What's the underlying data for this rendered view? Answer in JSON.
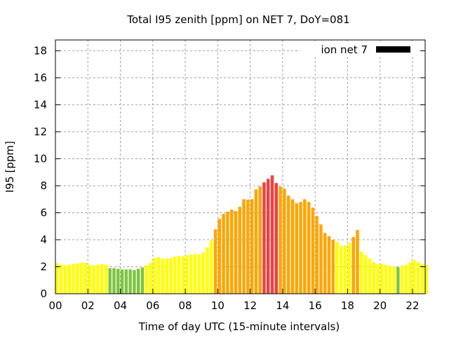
{
  "chart_data": {
    "type": "bar",
    "title": "Total I95 zenith [ppm] on NET 7, DoY=081",
    "xlabel": "Time of day UTC (15-minute intervals)",
    "ylabel": "I95 [ppm]",
    "xlim": [
      0,
      22.78
    ],
    "ylim": [
      0,
      18.8
    ],
    "x_step_hours": 0.25,
    "xticks": [
      "00",
      "02",
      "04",
      "06",
      "08",
      "10",
      "12",
      "14",
      "16",
      "18",
      "20",
      "22"
    ],
    "yticks": [
      "0",
      "2",
      "4",
      "6",
      "8",
      "10",
      "12",
      "14",
      "16",
      "18"
    ],
    "grid": true,
    "legend": {
      "label": "ion net 7",
      "placement": "top-right",
      "color": "#000000"
    },
    "color_thresholds": [
      {
        "max": 2,
        "color": "#7ec440"
      },
      {
        "max": 4,
        "color": "#ffff00"
      },
      {
        "max": 8,
        "color": "#ffa500"
      },
      {
        "max": 100,
        "color": "#f04040"
      }
    ],
    "values": [
      2.25,
      2.15,
      2.1,
      2.15,
      2.2,
      2.25,
      2.3,
      2.3,
      2.15,
      2.1,
      2.15,
      2.2,
      2.15,
      1.9,
      1.9,
      1.85,
      1.8,
      1.8,
      1.8,
      1.75,
      1.85,
      1.95,
      2.1,
      2.3,
      2.65,
      2.7,
      2.6,
      2.6,
      2.65,
      2.75,
      2.8,
      2.75,
      2.85,
      2.9,
      2.95,
      2.9,
      3.06,
      3.43,
      3.94,
      4.77,
      5.55,
      5.92,
      6.07,
      6.23,
      6.12,
      6.44,
      7.0,
      6.97,
      7.0,
      7.73,
      7.94,
      8.25,
      8.51,
      8.77,
      8.2,
      7.94,
      7.78,
      7.27,
      7.0,
      6.7,
      6.8,
      7.0,
      6.8,
      6.38,
      5.76,
      5.13,
      4.5,
      4.26,
      4.0,
      3.84,
      3.53,
      3.58,
      3.74,
      4.2,
      4.72,
      3.11,
      2.85,
      2.6,
      2.34,
      2.18,
      2.23,
      2.13,
      2.08,
      2.02,
      1.97,
      2.08,
      2.13,
      2.34,
      2.49,
      2.34,
      2.18,
      2.13
    ]
  }
}
